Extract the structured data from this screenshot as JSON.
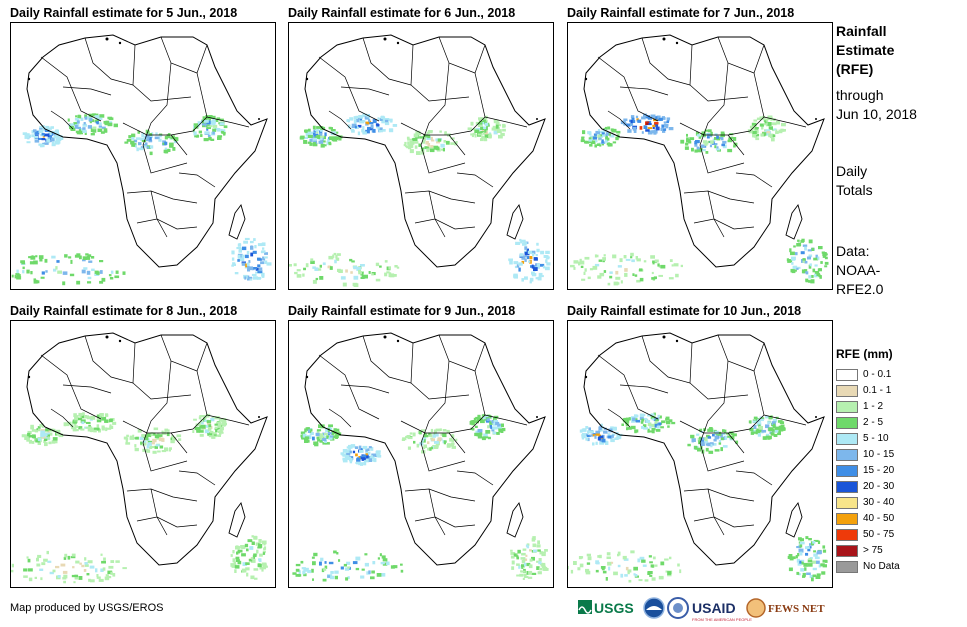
{
  "panels": [
    {
      "title": "Daily Rainfall estimate for 5 Jun., 2018",
      "blobs": [
        {
          "region": "west-coast",
          "intensity": "heavy"
        },
        {
          "region": "sahel-west",
          "intensity": "moderate"
        },
        {
          "region": "central",
          "intensity": "moderate"
        },
        {
          "region": "ethiopia",
          "intensity": "moderate"
        },
        {
          "region": "south-ocean",
          "intensity": "moderate"
        },
        {
          "region": "madagascar",
          "intensity": "heavy"
        }
      ]
    },
    {
      "title": "Daily Rainfall estimate for 6 Jun., 2018",
      "blobs": [
        {
          "region": "west-coast",
          "intensity": "moderate"
        },
        {
          "region": "sahel-west",
          "intensity": "heavy"
        },
        {
          "region": "central",
          "intensity": "light"
        },
        {
          "region": "ethiopia",
          "intensity": "light"
        },
        {
          "region": "south-ocean",
          "intensity": "light"
        },
        {
          "region": "madagascar",
          "intensity": "heavy"
        }
      ]
    },
    {
      "title": "Daily Rainfall estimate for 7 Jun., 2018",
      "blobs": [
        {
          "region": "west-coast",
          "intensity": "moderate"
        },
        {
          "region": "sahel-west",
          "intensity": "extreme"
        },
        {
          "region": "central",
          "intensity": "moderate"
        },
        {
          "region": "ethiopia",
          "intensity": "light"
        },
        {
          "region": "south-ocean",
          "intensity": "light"
        },
        {
          "region": "madagascar",
          "intensity": "moderate"
        }
      ]
    },
    {
      "title": "Daily Rainfall estimate for 8 Jun., 2018",
      "blobs": [
        {
          "region": "west-coast",
          "intensity": "light"
        },
        {
          "region": "sahel-west",
          "intensity": "light"
        },
        {
          "region": "central",
          "intensity": "light"
        },
        {
          "region": "ethiopia",
          "intensity": "light"
        },
        {
          "region": "south-ocean",
          "intensity": "light"
        },
        {
          "region": "madagascar",
          "intensity": "light"
        }
      ]
    },
    {
      "title": "Daily Rainfall estimate for 9 Jun., 2018",
      "blobs": [
        {
          "region": "west-coast",
          "intensity": "moderate"
        },
        {
          "region": "gulf-guinea",
          "intensity": "heavy"
        },
        {
          "region": "central",
          "intensity": "light"
        },
        {
          "region": "ethiopia",
          "intensity": "moderate"
        },
        {
          "region": "south-ocean",
          "intensity": "moderate"
        },
        {
          "region": "madagascar",
          "intensity": "light"
        }
      ]
    },
    {
      "title": "Daily Rainfall estimate for 10 Jun., 2018",
      "blobs": [
        {
          "region": "west-coast",
          "intensity": "heavy"
        },
        {
          "region": "sahel-west",
          "intensity": "moderate"
        },
        {
          "region": "central",
          "intensity": "moderate"
        },
        {
          "region": "ethiopia",
          "intensity": "moderate"
        },
        {
          "region": "south-ocean",
          "intensity": "light"
        },
        {
          "region": "madagascar",
          "intensity": "moderate"
        }
      ]
    }
  ],
  "sidebar": {
    "title_lines": [
      "Rainfall",
      "Estimate",
      "(RFE)"
    ],
    "period_lines": [
      "through",
      "Jun 10, 2018"
    ],
    "totals_lines": [
      "Daily",
      "Totals"
    ],
    "source_lines": [
      "Data:",
      "NOAA-",
      "RFE2.0"
    ]
  },
  "legend": {
    "title": "RFE (mm)",
    "items": [
      {
        "label": "0 - 0.1",
        "color": "#ffffff"
      },
      {
        "label": "0.1 - 1",
        "color": "#e8d9b5"
      },
      {
        "label": "1 - 2",
        "color": "#b6f0b0"
      },
      {
        "label": "2 - 5",
        "color": "#6fd96a"
      },
      {
        "label": "5 - 10",
        "color": "#aee9f5"
      },
      {
        "label": "10 - 15",
        "color": "#7db7ec"
      },
      {
        "label": "15 - 20",
        "color": "#3f8ee6"
      },
      {
        "label": "20 - 30",
        "color": "#1a55d8"
      },
      {
        "label": "30 - 40",
        "color": "#f8e58a"
      },
      {
        "label": "40 - 50",
        "color": "#f4a10c"
      },
      {
        "label": "50 - 75",
        "color": "#ee3a0a"
      },
      {
        "label": "> 75",
        "color": "#a8141a"
      },
      {
        "label": "No Data",
        "color": "#9a9a9a"
      }
    ]
  },
  "footer": {
    "credit": "Map produced by USGS/EROS",
    "logos": [
      "USGS",
      "NOAA",
      "USAID",
      "FEWS NET"
    ]
  }
}
